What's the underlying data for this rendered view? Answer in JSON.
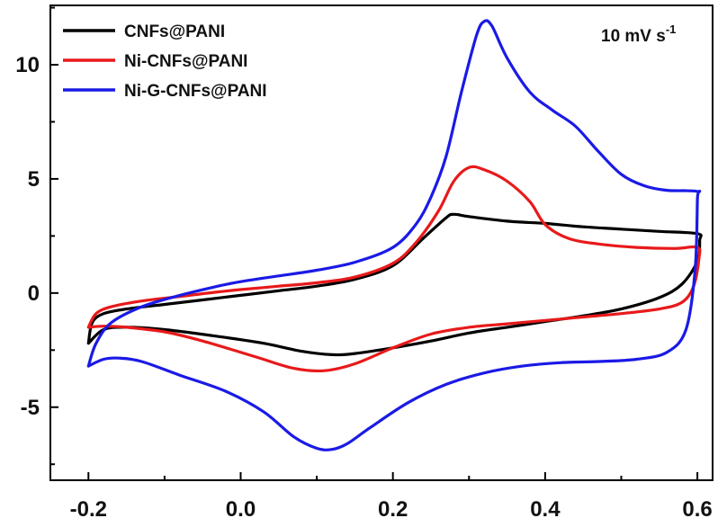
{
  "chart_data": {
    "type": "line",
    "title": "",
    "xlabel": "",
    "ylabel": "",
    "xlim": [
      -0.25,
      0.62
    ],
    "ylim": [
      -8.2,
      12.6
    ],
    "x_ticks": [
      -0.2,
      0.0,
      0.2,
      0.4,
      0.6
    ],
    "x_tick_labels": [
      "-0.2",
      "0.0",
      "0.2",
      "0.4",
      "0.6"
    ],
    "y_ticks": [
      -5,
      0,
      5,
      10
    ],
    "y_tick_labels": [
      "-5",
      "0",
      "5",
      "10"
    ],
    "grid": false,
    "legend_position": "top-left",
    "annotation": {
      "main": "10 mV s",
      "sup": "-1"
    },
    "series": [
      {
        "name": "CNFs@PANI",
        "color": "#000000",
        "points": [
          [
            -0.2,
            -2.2
          ],
          [
            -0.195,
            -1.3
          ],
          [
            -0.18,
            -0.9
          ],
          [
            -0.15,
            -0.7
          ],
          [
            -0.1,
            -0.5
          ],
          [
            -0.05,
            -0.3
          ],
          [
            0.0,
            -0.1
          ],
          [
            0.05,
            0.1
          ],
          [
            0.1,
            0.3
          ],
          [
            0.15,
            0.6
          ],
          [
            0.2,
            1.2
          ],
          [
            0.24,
            2.4
          ],
          [
            0.27,
            3.3
          ],
          [
            0.28,
            3.45
          ],
          [
            0.3,
            3.35
          ],
          [
            0.35,
            3.15
          ],
          [
            0.4,
            3.05
          ],
          [
            0.45,
            2.9
          ],
          [
            0.5,
            2.8
          ],
          [
            0.55,
            2.7
          ],
          [
            0.6,
            2.6
          ],
          [
            0.603,
            2.3
          ],
          [
            0.6,
            1.4
          ],
          [
            0.58,
            0.4
          ],
          [
            0.55,
            -0.2
          ],
          [
            0.5,
            -0.7
          ],
          [
            0.45,
            -1.0
          ],
          [
            0.4,
            -1.25
          ],
          [
            0.35,
            -1.5
          ],
          [
            0.3,
            -1.75
          ],
          [
            0.25,
            -2.1
          ],
          [
            0.2,
            -2.4
          ],
          [
            0.15,
            -2.65
          ],
          [
            0.12,
            -2.7
          ],
          [
            0.08,
            -2.55
          ],
          [
            0.03,
            -2.2
          ],
          [
            -0.03,
            -1.9
          ],
          [
            -0.1,
            -1.6
          ],
          [
            -0.15,
            -1.5
          ],
          [
            -0.18,
            -1.6
          ],
          [
            -0.2,
            -2.2
          ]
        ]
      },
      {
        "name": "Ni-CNFs@PANI",
        "color": "#e8191a",
        "points": [
          [
            -0.2,
            -1.5
          ],
          [
            -0.19,
            -0.9
          ],
          [
            -0.17,
            -0.6
          ],
          [
            -0.13,
            -0.35
          ],
          [
            -0.08,
            -0.15
          ],
          [
            -0.03,
            0.05
          ],
          [
            0.0,
            0.15
          ],
          [
            0.05,
            0.3
          ],
          [
            0.1,
            0.45
          ],
          [
            0.15,
            0.7
          ],
          [
            0.2,
            1.3
          ],
          [
            0.23,
            2.2
          ],
          [
            0.26,
            3.6
          ],
          [
            0.28,
            4.9
          ],
          [
            0.3,
            5.5
          ],
          [
            0.32,
            5.4
          ],
          [
            0.35,
            4.9
          ],
          [
            0.38,
            4.0
          ],
          [
            0.4,
            3.0
          ],
          [
            0.43,
            2.4
          ],
          [
            0.47,
            2.15
          ],
          [
            0.52,
            2.0
          ],
          [
            0.57,
            1.95
          ],
          [
            0.6,
            2.0
          ],
          [
            0.602,
            1.5
          ],
          [
            0.595,
            0.3
          ],
          [
            0.58,
            -0.4
          ],
          [
            0.55,
            -0.7
          ],
          [
            0.5,
            -0.9
          ],
          [
            0.45,
            -1.05
          ],
          [
            0.4,
            -1.2
          ],
          [
            0.35,
            -1.35
          ],
          [
            0.3,
            -1.5
          ],
          [
            0.25,
            -1.8
          ],
          [
            0.2,
            -2.4
          ],
          [
            0.15,
            -3.1
          ],
          [
            0.11,
            -3.4
          ],
          [
            0.07,
            -3.3
          ],
          [
            0.02,
            -2.8
          ],
          [
            -0.05,
            -2.1
          ],
          [
            -0.1,
            -1.7
          ],
          [
            -0.15,
            -1.5
          ],
          [
            -0.18,
            -1.45
          ],
          [
            -0.2,
            -1.5
          ]
        ]
      },
      {
        "name": "Ni-G-CNFs@PANI",
        "color": "#1a1ae6",
        "points": [
          [
            -0.2,
            -3.2
          ],
          [
            -0.19,
            -2.2
          ],
          [
            -0.17,
            -1.3
          ],
          [
            -0.13,
            -0.6
          ],
          [
            -0.08,
            -0.1
          ],
          [
            -0.03,
            0.3
          ],
          [
            0.0,
            0.5
          ],
          [
            0.05,
            0.75
          ],
          [
            0.1,
            1.0
          ],
          [
            0.15,
            1.35
          ],
          [
            0.2,
            2.0
          ],
          [
            0.23,
            3.0
          ],
          [
            0.25,
            4.2
          ],
          [
            0.27,
            6.0
          ],
          [
            0.29,
            8.8
          ],
          [
            0.31,
            11.3
          ],
          [
            0.32,
            11.9
          ],
          [
            0.33,
            11.7
          ],
          [
            0.35,
            10.3
          ],
          [
            0.38,
            8.8
          ],
          [
            0.41,
            8.0
          ],
          [
            0.44,
            7.3
          ],
          [
            0.47,
            6.2
          ],
          [
            0.5,
            5.2
          ],
          [
            0.53,
            4.7
          ],
          [
            0.56,
            4.5
          ],
          [
            0.6,
            4.45
          ],
          [
            0.6,
            4.1
          ],
          [
            0.597,
            1.0
          ],
          [
            0.585,
            -1.6
          ],
          [
            0.56,
            -2.6
          ],
          [
            0.52,
            -2.9
          ],
          [
            0.47,
            -3.0
          ],
          [
            0.42,
            -3.05
          ],
          [
            0.37,
            -3.2
          ],
          [
            0.32,
            -3.5
          ],
          [
            0.27,
            -4.0
          ],
          [
            0.22,
            -4.8
          ],
          [
            0.17,
            -5.9
          ],
          [
            0.14,
            -6.6
          ],
          [
            0.12,
            -6.85
          ],
          [
            0.1,
            -6.8
          ],
          [
            0.07,
            -6.3
          ],
          [
            0.03,
            -5.2
          ],
          [
            -0.02,
            -4.3
          ],
          [
            -0.08,
            -3.6
          ],
          [
            -0.13,
            -3.0
          ],
          [
            -0.16,
            -2.85
          ],
          [
            -0.18,
            -2.9
          ],
          [
            -0.2,
            -3.2
          ]
        ]
      }
    ]
  }
}
